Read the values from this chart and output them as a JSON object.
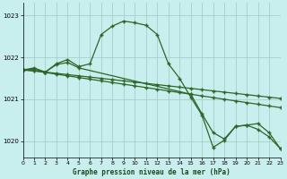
{
  "title": "Graphe pression niveau de la mer (hPa)",
  "background_color": "#c8eeed",
  "grid_color": "#a8cecc",
  "line_color": "#2d6628",
  "xlim": [
    0,
    23
  ],
  "ylim": [
    1019.6,
    1023.3
  ],
  "yticks": [
    1020,
    1021,
    1022,
    1023
  ],
  "xticks": [
    0,
    1,
    2,
    3,
    4,
    5,
    6,
    7,
    8,
    9,
    10,
    11,
    12,
    13,
    14,
    15,
    16,
    17,
    18,
    19,
    20,
    21,
    22,
    23
  ],
  "series_main_x": [
    0,
    1,
    2,
    3,
    4,
    5,
    6,
    7,
    8,
    9,
    10,
    11,
    12,
    13,
    14,
    15,
    16,
    17,
    18,
    19,
    20,
    21,
    22,
    23
  ],
  "series_main_y": [
    1021.7,
    1021.75,
    1021.65,
    1021.85,
    1021.95,
    1021.78,
    1021.85,
    1022.55,
    1022.75,
    1022.87,
    1022.83,
    1022.77,
    1022.55,
    1021.85,
    1021.5,
    1021.05,
    1020.62,
    1019.85,
    1020.02,
    1020.35,
    1020.38,
    1020.28,
    1020.1,
    1019.82
  ],
  "series_diag1_x": [
    0,
    1,
    2,
    3,
    4,
    5,
    6,
    7,
    8,
    9,
    10,
    11,
    12,
    13,
    14,
    15,
    16,
    17,
    18,
    19,
    20,
    21,
    22,
    23
  ],
  "series_diag1_y": [
    1021.7,
    1021.68,
    1021.64,
    1021.6,
    1021.56,
    1021.52,
    1021.48,
    1021.44,
    1021.4,
    1021.36,
    1021.32,
    1021.28,
    1021.24,
    1021.2,
    1021.16,
    1021.12,
    1021.08,
    1021.04,
    1021.0,
    1020.96,
    1020.92,
    1020.88,
    1020.84,
    1020.8
  ],
  "series_diag2_x": [
    0,
    1,
    2,
    3,
    4,
    5,
    6,
    7,
    8,
    9,
    10,
    11,
    12,
    13,
    14,
    15,
    16,
    17,
    18,
    19,
    20,
    21,
    22,
    23
  ],
  "series_diag2_y": [
    1021.7,
    1021.68,
    1021.65,
    1021.62,
    1021.59,
    1021.56,
    1021.53,
    1021.5,
    1021.47,
    1021.44,
    1021.41,
    1021.38,
    1021.35,
    1021.32,
    1021.29,
    1021.26,
    1021.23,
    1021.2,
    1021.17,
    1021.14,
    1021.11,
    1021.08,
    1021.05,
    1021.02
  ],
  "series_seg_x": [
    0,
    1,
    2,
    3,
    4,
    5,
    15,
    16,
    17,
    18,
    19,
    20,
    21,
    22,
    23
  ],
  "series_seg_y": [
    1021.7,
    1021.72,
    1021.65,
    1021.83,
    1021.88,
    1021.75,
    1021.12,
    1020.65,
    1020.2,
    1020.05,
    1020.35,
    1020.38,
    1020.42,
    1020.2,
    1019.82
  ]
}
